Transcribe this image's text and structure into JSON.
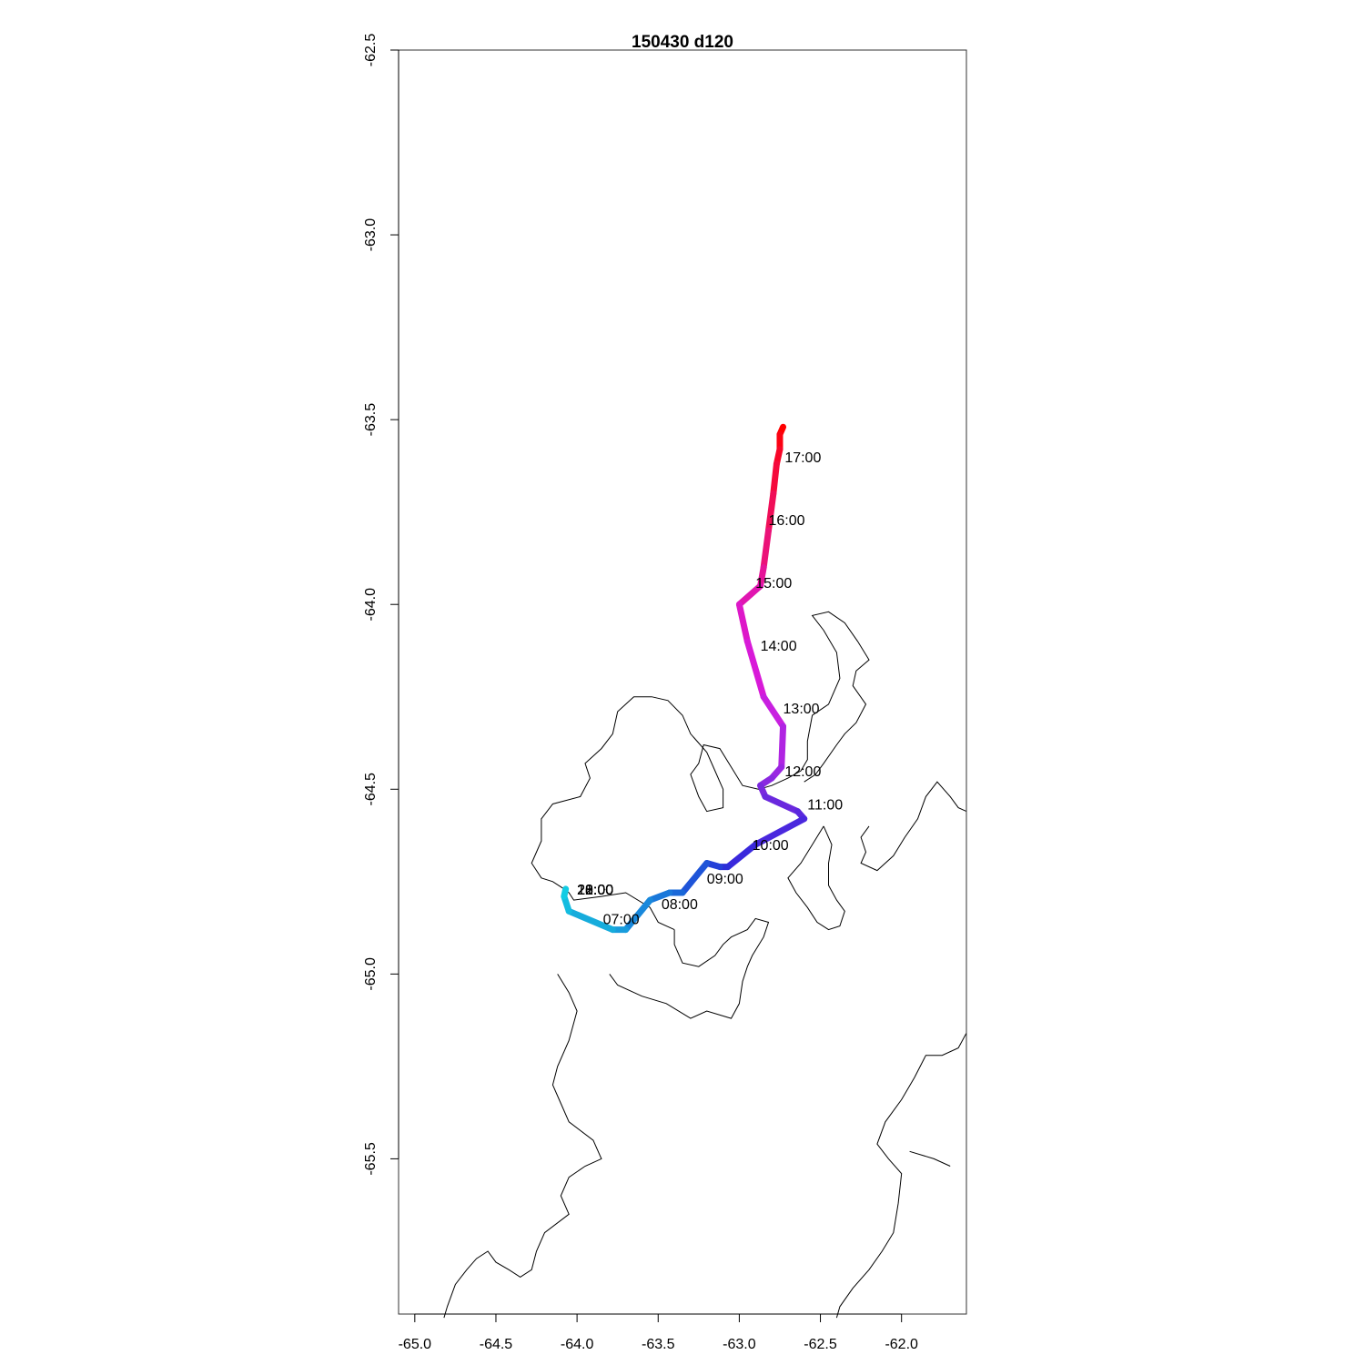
{
  "title": "150430   d120",
  "chart_data": {
    "type": "line",
    "xlim": [
      -65.1,
      -61.6
    ],
    "ylim": [
      -65.92,
      -62.5
    ],
    "x_ticks": [
      -65.0,
      -64.5,
      -64.0,
      -63.5,
      -63.0,
      -62.5,
      -62.0
    ],
    "y_ticks": [
      -62.5,
      -63.0,
      -63.5,
      -64.0,
      -64.5,
      -65.0,
      -65.5
    ],
    "x_tick_labels": [
      "-65.0",
      "-64.5",
      "-64.0",
      "-63.5",
      "-63.0",
      "-62.5",
      "-62.0"
    ],
    "y_tick_labels": [
      "-62.5",
      "-63.0",
      "-63.5",
      "-64.0",
      "-64.5",
      "-65.0",
      "-65.5"
    ],
    "track": [
      {
        "x": -62.73,
        "y": -63.52,
        "color": "#ff0000"
      },
      {
        "x": -62.75,
        "y": -63.54,
        "color": "#fc0212"
      },
      {
        "x": -62.75,
        "y": -63.58,
        "color": "#f80628"
      },
      {
        "x": -62.77,
        "y": -63.62,
        "color": "#f50a3c"
      },
      {
        "x": -62.79,
        "y": -63.7,
        "color": "#f00e58"
      },
      {
        "x": -62.82,
        "y": -63.8,
        "color": "#eb1278"
      },
      {
        "x": -62.85,
        "y": -63.9,
        "color": "#e51498"
      },
      {
        "x": -62.87,
        "y": -63.95,
        "color": "#e016b0"
      },
      {
        "x": -63.0,
        "y": -64.0,
        "color": "#dd18c8"
      },
      {
        "x": -62.95,
        "y": -64.1,
        "color": "#d81ad8"
      },
      {
        "x": -62.85,
        "y": -64.25,
        "color": "#c820e0"
      },
      {
        "x": -62.73,
        "y": -64.33,
        "color": "#b024e2"
      },
      {
        "x": -62.74,
        "y": -64.44,
        "color": "#9a26e2"
      },
      {
        "x": -62.8,
        "y": -64.47,
        "color": "#8a28e0"
      },
      {
        "x": -62.87,
        "y": -64.49,
        "color": "#7a28de"
      },
      {
        "x": -62.84,
        "y": -64.52,
        "color": "#6a28de"
      },
      {
        "x": -62.64,
        "y": -64.56,
        "color": "#5a28de"
      },
      {
        "x": -62.6,
        "y": -64.58,
        "color": "#4a28de"
      },
      {
        "x": -62.9,
        "y": -64.65,
        "color": "#3a28dc"
      },
      {
        "x": -63.07,
        "y": -64.71,
        "color": "#2c2ed8"
      },
      {
        "x": -63.12,
        "y": -64.71,
        "color": "#2440d8"
      },
      {
        "x": -63.2,
        "y": -64.7,
        "color": "#1e54d8"
      },
      {
        "x": -63.35,
        "y": -64.78,
        "color": "#1a68d8"
      },
      {
        "x": -63.43,
        "y": -64.78,
        "color": "#1a78da"
      },
      {
        "x": -63.55,
        "y": -64.8,
        "color": "#1888dc"
      },
      {
        "x": -63.7,
        "y": -64.88,
        "color": "#189cdc"
      },
      {
        "x": -63.78,
        "y": -64.88,
        "color": "#16acdc"
      },
      {
        "x": -64.05,
        "y": -64.83,
        "color": "#14bce0"
      },
      {
        "x": -64.08,
        "y": -64.79,
        "color": "#12cce4"
      },
      {
        "x": -64.07,
        "y": -64.77,
        "color": "#10d8e8"
      }
    ],
    "time_labels": [
      {
        "text": "17:00",
        "x": -62.72,
        "y": -63.6
      },
      {
        "text": "16:00",
        "x": -62.82,
        "y": -63.77
      },
      {
        "text": "15:00",
        "x": -62.9,
        "y": -63.94
      },
      {
        "text": "14:00",
        "x": -62.87,
        "y": -64.11
      },
      {
        "text": "13:00",
        "x": -62.73,
        "y": -64.28
      },
      {
        "text": "12:00",
        "x": -62.72,
        "y": -64.45
      },
      {
        "text": "11:00",
        "x": -62.58,
        "y": -64.54
      },
      {
        "text": "10:00",
        "x": -62.92,
        "y": -64.65
      },
      {
        "text": "09:00",
        "x": -63.2,
        "y": -64.74
      },
      {
        "text": "08:00",
        "x": -63.48,
        "y": -64.81
      },
      {
        "text": "07:00",
        "x": -63.84,
        "y": -64.85
      },
      {
        "text": "20:00",
        "x": -64.0,
        "y": -64.77
      },
      {
        "text": "21:00",
        "x": -64.0,
        "y": -64.77
      },
      {
        "text": "22:00",
        "x": -64.0,
        "y": -64.77
      },
      {
        "text": "23:00",
        "x": -64.0,
        "y": -64.77
      },
      {
        "text": "18:00",
        "x": -64.0,
        "y": -64.77
      }
    ],
    "coastlines": [
      [
        [
          -63.4,
          -64.88
        ],
        [
          -63.5,
          -64.86
        ],
        [
          -63.55,
          -64.82
        ],
        [
          -63.7,
          -64.78
        ],
        [
          -63.85,
          -64.79
        ],
        [
          -64.02,
          -64.8
        ],
        [
          -64.05,
          -64.78
        ],
        [
          -64.08,
          -64.77
        ],
        [
          -64.15,
          -64.75
        ],
        [
          -64.22,
          -64.74
        ],
        [
          -64.28,
          -64.7
        ],
        [
          -64.22,
          -64.64
        ],
        [
          -64.22,
          -64.58
        ],
        [
          -64.15,
          -64.54
        ],
        [
          -63.98,
          -64.52
        ],
        [
          -63.92,
          -64.47
        ],
        [
          -63.95,
          -64.43
        ],
        [
          -63.85,
          -64.39
        ],
        [
          -63.78,
          -64.35
        ],
        [
          -63.75,
          -64.29
        ],
        [
          -63.65,
          -64.25
        ],
        [
          -63.54,
          -64.25
        ],
        [
          -63.44,
          -64.26
        ],
        [
          -63.35,
          -64.3
        ],
        [
          -63.3,
          -64.35
        ],
        [
          -63.2,
          -64.4
        ],
        [
          -63.15,
          -64.45
        ],
        [
          -63.1,
          -64.5
        ],
        [
          -63.1,
          -64.55
        ],
        [
          -63.2,
          -64.56
        ],
        [
          -63.25,
          -64.52
        ],
        [
          -63.3,
          -64.46
        ],
        [
          -63.25,
          -64.43
        ],
        [
          -63.22,
          -64.38
        ],
        [
          -63.12,
          -64.39
        ],
        [
          -63.05,
          -64.44
        ],
        [
          -62.98,
          -64.49
        ],
        [
          -62.88,
          -64.5
        ],
        [
          -62.8,
          -64.49
        ],
        [
          -62.7,
          -64.47
        ],
        [
          -62.62,
          -64.45
        ],
        [
          -62.58,
          -64.42
        ],
        [
          -62.58,
          -64.37
        ],
        [
          -62.55,
          -64.3
        ],
        [
          -62.45,
          -64.27
        ],
        [
          -62.38,
          -64.2
        ],
        [
          -62.4,
          -64.13
        ],
        [
          -62.48,
          -64.07
        ],
        [
          -62.55,
          -64.03
        ],
        [
          -62.45,
          -64.02
        ],
        [
          -62.35,
          -64.05
        ],
        [
          -62.27,
          -64.1
        ],
        [
          -62.2,
          -64.15
        ],
        [
          -62.28,
          -64.18
        ],
        [
          -62.3,
          -64.22
        ],
        [
          -62.22,
          -64.27
        ],
        [
          -62.28,
          -64.32
        ],
        [
          -62.35,
          -64.35
        ],
        [
          -62.4,
          -64.38
        ],
        [
          -62.48,
          -64.43
        ],
        [
          -62.53,
          -64.46
        ],
        [
          -62.6,
          -64.48
        ]
      ],
      [
        [
          -64.12,
          -65.0
        ],
        [
          -64.05,
          -65.05
        ],
        [
          -64.0,
          -65.1
        ],
        [
          -64.05,
          -65.18
        ],
        [
          -64.12,
          -65.25
        ],
        [
          -64.15,
          -65.3
        ],
        [
          -64.1,
          -65.35
        ],
        [
          -64.05,
          -65.4
        ],
        [
          -63.9,
          -65.45
        ],
        [
          -63.85,
          -65.5
        ],
        [
          -63.95,
          -65.52
        ],
        [
          -64.05,
          -65.55
        ],
        [
          -64.1,
          -65.6
        ],
        [
          -64.05,
          -65.65
        ],
        [
          -64.2,
          -65.7
        ],
        [
          -64.25,
          -65.75
        ],
        [
          -64.28,
          -65.8
        ],
        [
          -64.35,
          -65.82
        ],
        [
          -64.42,
          -65.8
        ],
        [
          -64.5,
          -65.78
        ],
        [
          -64.55,
          -65.75
        ],
        [
          -64.62,
          -65.77
        ],
        [
          -64.68,
          -65.8
        ],
        [
          -64.75,
          -65.84
        ],
        [
          -64.8,
          -65.9
        ],
        [
          -64.82,
          -65.93
        ]
      ],
      [
        [
          -63.8,
          -65.0
        ],
        [
          -63.75,
          -65.03
        ],
        [
          -63.6,
          -65.06
        ],
        [
          -63.45,
          -65.08
        ],
        [
          -63.3,
          -65.12
        ],
        [
          -63.2,
          -65.1
        ],
        [
          -63.05,
          -65.12
        ],
        [
          -63.0,
          -65.08
        ],
        [
          -62.98,
          -65.02
        ],
        [
          -62.95,
          -64.98
        ],
        [
          -62.92,
          -64.95
        ],
        [
          -62.85,
          -64.9
        ],
        [
          -62.82,
          -64.86
        ],
        [
          -62.9,
          -64.85
        ],
        [
          -62.95,
          -64.88
        ],
        [
          -63.05,
          -64.9
        ],
        [
          -63.1,
          -64.92
        ],
        [
          -63.15,
          -64.95
        ],
        [
          -63.25,
          -64.98
        ],
        [
          -63.35,
          -64.97
        ],
        [
          -63.4,
          -64.92
        ],
        [
          -63.4,
          -64.88
        ]
      ],
      [
        [
          -62.48,
          -64.6
        ],
        [
          -62.55,
          -64.65
        ],
        [
          -62.62,
          -64.7
        ],
        [
          -62.7,
          -64.74
        ],
        [
          -62.65,
          -64.78
        ],
        [
          -62.58,
          -64.82
        ],
        [
          -62.52,
          -64.86
        ],
        [
          -62.45,
          -64.88
        ],
        [
          -62.38,
          -64.87
        ],
        [
          -62.35,
          -64.83
        ],
        [
          -62.4,
          -64.8
        ],
        [
          -62.45,
          -64.76
        ],
        [
          -62.45,
          -64.7
        ],
        [
          -62.43,
          -64.65
        ],
        [
          -62.48,
          -64.6
        ]
      ],
      [
        [
          -62.2,
          -64.6
        ],
        [
          -62.25,
          -64.63
        ],
        [
          -62.22,
          -64.67
        ],
        [
          -62.25,
          -64.7
        ],
        [
          -62.15,
          -64.72
        ],
        [
          -62.05,
          -64.68
        ],
        [
          -61.98,
          -64.63
        ],
        [
          -61.9,
          -64.58
        ],
        [
          -61.85,
          -64.52
        ],
        [
          -61.78,
          -64.48
        ],
        [
          -61.7,
          -64.52
        ],
        [
          -61.65,
          -64.55
        ],
        [
          -61.6,
          -64.56
        ]
      ],
      [
        [
          -61.6,
          -65.16
        ],
        [
          -61.65,
          -65.2
        ],
        [
          -61.75,
          -65.22
        ],
        [
          -61.85,
          -65.22
        ],
        [
          -61.92,
          -65.28
        ],
        [
          -62.0,
          -65.34
        ],
        [
          -62.1,
          -65.4
        ],
        [
          -62.15,
          -65.46
        ],
        [
          -62.08,
          -65.5
        ],
        [
          -62.0,
          -65.54
        ],
        [
          -62.02,
          -65.62
        ],
        [
          -62.05,
          -65.7
        ],
        [
          -62.12,
          -65.75
        ],
        [
          -62.2,
          -65.8
        ],
        [
          -62.3,
          -65.85
        ],
        [
          -62.38,
          -65.9
        ],
        [
          -62.4,
          -65.93
        ]
      ],
      [
        [
          -61.7,
          -65.52
        ],
        [
          -61.8,
          -65.5
        ],
        [
          -61.95,
          -65.48
        ]
      ]
    ]
  }
}
